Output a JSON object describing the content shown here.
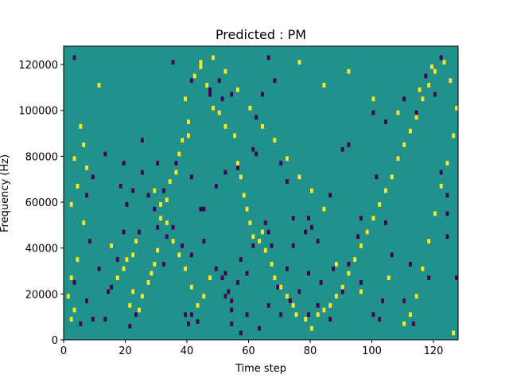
{
  "chart_data": {
    "type": "heatmap",
    "title": "Predicted : PM",
    "xlabel": "Time step",
    "ylabel": "Frequency (Hz)",
    "xlim": [
      0,
      128
    ],
    "ylim": [
      0,
      128000
    ],
    "x_ticks": [
      0,
      20,
      40,
      60,
      80,
      100,
      120
    ],
    "x_tick_labels": [
      "0",
      "20",
      "40",
      "60",
      "80",
      "100",
      "120"
    ],
    "y_ticks": [
      0,
      20000,
      40000,
      60000,
      80000,
      100000,
      120000
    ],
    "y_tick_labels": [
      "0",
      "20000",
      "40000",
      "60000",
      "80000",
      "100000",
      "120000"
    ],
    "grid": false,
    "colors": {
      "low": "#440154",
      "mid": "#21918c",
      "high": "#fde725"
    },
    "background_level": "mid",
    "low_cells": [
      [
        3,
        122000
      ],
      [
        21,
        5000
      ],
      [
        9,
        8000
      ],
      [
        23,
        10000
      ],
      [
        35,
        120000
      ],
      [
        39,
        10000
      ],
      [
        41,
        10000
      ],
      [
        40,
        6000
      ],
      [
        43,
        7000
      ],
      [
        47,
        106000
      ],
      [
        41,
        112000
      ],
      [
        47,
        108000
      ],
      [
        50,
        112000
      ],
      [
        51,
        104000
      ],
      [
        54,
        106000
      ],
      [
        62,
        96000
      ],
      [
        61,
        82000
      ],
      [
        64,
        106000
      ],
      [
        66,
        122000
      ],
      [
        68,
        112000
      ],
      [
        79,
        52000
      ],
      [
        80,
        48000
      ],
      [
        82,
        42000
      ],
      [
        83,
        24000
      ],
      [
        86,
        8000
      ],
      [
        87,
        30000
      ],
      [
        86,
        62000
      ],
      [
        90,
        82000
      ],
      [
        92,
        84000
      ],
      [
        101,
        70000
      ],
      [
        96,
        24000
      ],
      [
        103,
        16000
      ],
      [
        102,
        8000
      ],
      [
        100,
        10000
      ],
      [
        114,
        98000
      ],
      [
        122,
        122000
      ],
      [
        120,
        106000
      ],
      [
        117,
        114000
      ],
      [
        122,
        72000
      ],
      [
        124,
        62000
      ],
      [
        124,
        44000
      ],
      [
        118,
        26000
      ],
      [
        124,
        54000
      ],
      [
        127,
        26000
      ],
      [
        106,
        36000
      ],
      [
        104,
        50000
      ],
      [
        96,
        52000
      ],
      [
        95,
        44000
      ],
      [
        92,
        32000
      ],
      [
        90,
        20000
      ],
      [
        79,
        28000
      ],
      [
        82,
        14000
      ],
      [
        79,
        10000
      ],
      [
        73,
        16000
      ],
      [
        70,
        10000
      ],
      [
        69,
        22000
      ],
      [
        67,
        40000
      ],
      [
        66,
        46000
      ],
      [
        65,
        50000
      ],
      [
        61,
        40000
      ],
      [
        57,
        34000
      ],
      [
        56,
        24000
      ],
      [
        54,
        12000
      ],
      [
        53,
        20000
      ],
      [
        52,
        28000
      ],
      [
        51,
        26000
      ],
      [
        52,
        18000
      ],
      [
        54,
        16000
      ],
      [
        54,
        6000
      ],
      [
        57,
        2000
      ],
      [
        59,
        10000
      ],
      [
        59,
        28000
      ],
      [
        49,
        30000
      ],
      [
        45,
        42000
      ],
      [
        45,
        56000
      ],
      [
        41,
        36000
      ],
      [
        38,
        40000
      ],
      [
        35,
        48000
      ],
      [
        33,
        44000
      ],
      [
        32,
        32000
      ],
      [
        30,
        48000
      ],
      [
        29,
        56000
      ],
      [
        27,
        62000
      ],
      [
        25,
        72000
      ],
      [
        25,
        86000
      ],
      [
        19,
        76000
      ],
      [
        18,
        66000
      ],
      [
        20,
        58000
      ],
      [
        13,
        80000
      ],
      [
        9,
        70000
      ],
      [
        7,
        62000
      ],
      [
        8,
        42000
      ],
      [
        11,
        30000
      ],
      [
        14,
        20000
      ],
      [
        3,
        24000
      ],
      [
        5,
        6000
      ],
      [
        7,
        16000
      ],
      [
        13,
        8000
      ],
      [
        15,
        22000
      ],
      [
        17,
        34000
      ],
      [
        19,
        46000
      ],
      [
        24,
        46000
      ],
      [
        22,
        64000
      ],
      [
        30,
        76000
      ],
      [
        32,
        64000
      ],
      [
        36,
        76000
      ],
      [
        41,
        70000
      ],
      [
        44,
        56000
      ],
      [
        49,
        66000
      ],
      [
        52,
        72000
      ],
      [
        56,
        74000
      ],
      [
        62,
        80000
      ],
      [
        70,
        76000
      ],
      [
        72,
        68000
      ],
      [
        74,
        52000
      ],
      [
        74,
        40000
      ],
      [
        72,
        30000
      ],
      [
        76,
        20000
      ],
      [
        78,
        46000
      ],
      [
        66,
        14000
      ],
      [
        63,
        4000
      ],
      [
        110,
        16000
      ],
      [
        112,
        32000
      ],
      [
        113,
        6000
      ],
      [
        110,
        104000
      ],
      [
        104,
        94000
      ],
      [
        100,
        98000
      ]
    ],
    "high_cells": [
      [
        2,
        8000
      ],
      [
        3,
        12000
      ],
      [
        1,
        18000
      ],
      [
        2,
        26000
      ],
      [
        4,
        34000
      ],
      [
        6,
        50000
      ],
      [
        2,
        58000
      ],
      [
        4,
        66000
      ],
      [
        7,
        74000
      ],
      [
        3,
        78000
      ],
      [
        6,
        84000
      ],
      [
        5,
        92000
      ],
      [
        11,
        110000
      ],
      [
        15,
        40000
      ],
      [
        17,
        26000
      ],
      [
        19,
        30000
      ],
      [
        20,
        34000
      ],
      [
        22,
        36000
      ],
      [
        23,
        42000
      ],
      [
        22,
        20000
      ],
      [
        21,
        14000
      ],
      [
        24,
        12000
      ],
      [
        25,
        18000
      ],
      [
        27,
        24000
      ],
      [
        28,
        28000
      ],
      [
        29,
        32000
      ],
      [
        30,
        38000
      ],
      [
        31,
        52000
      ],
      [
        33,
        60000
      ],
      [
        34,
        68000
      ],
      [
        36,
        72000
      ],
      [
        37,
        80000
      ],
      [
        38,
        86000
      ],
      [
        40,
        88000
      ],
      [
        40,
        94000
      ],
      [
        39,
        104000
      ],
      [
        42,
        114000
      ],
      [
        44,
        118000
      ],
      [
        46,
        110000
      ],
      [
        48,
        100000
      ],
      [
        50,
        98000
      ],
      [
        52,
        92000
      ],
      [
        55,
        88000
      ],
      [
        56,
        76000
      ],
      [
        57,
        70000
      ],
      [
        58,
        62000
      ],
      [
        59,
        56000
      ],
      [
        60,
        50000
      ],
      [
        61,
        44000
      ],
      [
        63,
        42000
      ],
      [
        64,
        46000
      ],
      [
        65,
        38000
      ],
      [
        67,
        32000
      ],
      [
        68,
        26000
      ],
      [
        70,
        22000
      ],
      [
        72,
        18000
      ],
      [
        74,
        14000
      ],
      [
        75,
        10000
      ],
      [
        78,
        8000
      ],
      [
        80,
        4000
      ],
      [
        82,
        10000
      ],
      [
        84,
        12000
      ],
      [
        86,
        14000
      ],
      [
        88,
        18000
      ],
      [
        90,
        22000
      ],
      [
        92,
        28000
      ],
      [
        94,
        34000
      ],
      [
        96,
        40000
      ],
      [
        98,
        46000
      ],
      [
        100,
        52000
      ],
      [
        102,
        58000
      ],
      [
        104,
        64000
      ],
      [
        106,
        70000
      ],
      [
        108,
        78000
      ],
      [
        110,
        84000
      ],
      [
        112,
        90000
      ],
      [
        114,
        96000
      ],
      [
        116,
        104000
      ],
      [
        118,
        110000
      ],
      [
        120,
        116000
      ],
      [
        123,
        120000
      ],
      [
        125,
        112000
      ],
      [
        127,
        100000
      ],
      [
        126,
        88000
      ],
      [
        124,
        76000
      ],
      [
        122,
        66000
      ],
      [
        120,
        54000
      ],
      [
        118,
        42000
      ],
      [
        116,
        30000
      ],
      [
        114,
        18000
      ],
      [
        112,
        10000
      ],
      [
        110,
        6000
      ],
      [
        126,
        2000
      ],
      [
        105,
        26000
      ],
      [
        96,
        20000
      ],
      [
        88,
        32000
      ],
      [
        84,
        56000
      ],
      [
        80,
        64000
      ],
      [
        76,
        70000
      ],
      [
        72,
        78000
      ],
      [
        68,
        86000
      ],
      [
        64,
        92000
      ],
      [
        60,
        100000
      ],
      [
        56,
        108000
      ],
      [
        52,
        116000
      ],
      [
        48,
        122000
      ],
      [
        44,
        120000
      ],
      [
        76,
        120000
      ],
      [
        84,
        110000
      ],
      [
        92,
        116000
      ],
      [
        100,
        104000
      ],
      [
        108,
        98000
      ],
      [
        115,
        108000
      ],
      [
        119,
        118000
      ],
      [
        47,
        26000
      ],
      [
        45,
        18000
      ],
      [
        43,
        14000
      ],
      [
        41,
        22000
      ],
      [
        39,
        30000
      ],
      [
        37,
        36000
      ],
      [
        35,
        42000
      ],
      [
        33,
        50000
      ],
      [
        31,
        58000
      ],
      [
        29,
        64000
      ]
    ]
  }
}
